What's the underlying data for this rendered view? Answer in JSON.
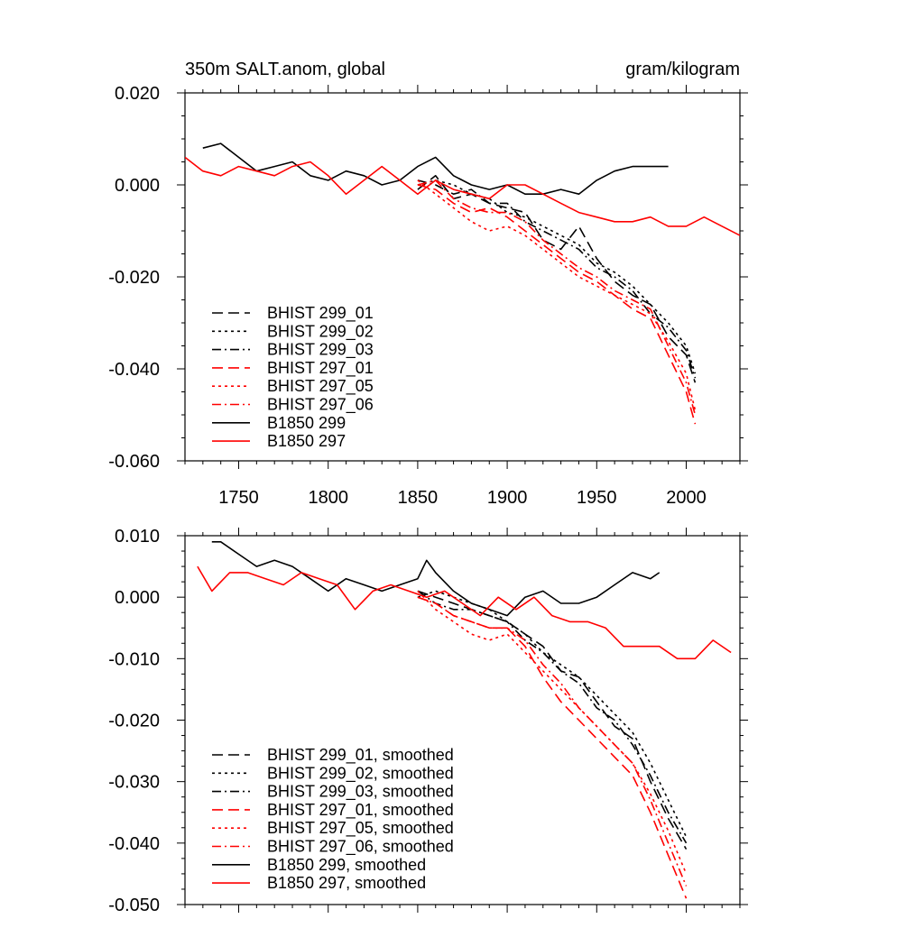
{
  "colors": {
    "black": "#000000",
    "red": "#ff0000"
  },
  "chart_data": [
    {
      "type": "line",
      "title": "350m SALT.anom, global",
      "units": "gram/kilogram",
      "xlabel": "",
      "ylabel": "",
      "xlim": [
        1720,
        2030
      ],
      "ylim": [
        -0.06,
        0.02
      ],
      "xticks": [
        1750,
        1800,
        1850,
        1900,
        1950,
        2000
      ],
      "xtick_labels": [
        "1750",
        "1800",
        "1850",
        "1900",
        "1950",
        "2000"
      ],
      "yticks": [
        0.02,
        0.0,
        -0.02,
        -0.04,
        -0.06
      ],
      "ytick_labels": [
        "0.020",
        "0.000",
        "-0.020",
        "-0.040",
        "-0.060"
      ],
      "legend_position": "lower-left",
      "series": [
        {
          "name": "BHIST 299_01",
          "color": "black",
          "dash": "dash",
          "x": [
            1850,
            1860,
            1870,
            1880,
            1890,
            1900,
            1910,
            1920,
            1930,
            1940,
            1950,
            1960,
            1970,
            1980,
            1990,
            2000,
            2005
          ],
          "y": [
            -0.001,
            0.002,
            -0.003,
            -0.002,
            -0.004,
            -0.005,
            -0.006,
            -0.012,
            -0.014,
            -0.009,
            -0.016,
            -0.021,
            -0.024,
            -0.026,
            -0.033,
            -0.037,
            -0.043
          ]
        },
        {
          "name": "BHIST 299_02",
          "color": "black",
          "dash": "dot",
          "x": [
            1850,
            1860,
            1870,
            1880,
            1890,
            1900,
            1910,
            1920,
            1930,
            1940,
            1950,
            1960,
            1970,
            1980,
            1990,
            2000,
            2005
          ],
          "y": [
            0.0,
            0.001,
            0.0,
            -0.002,
            -0.003,
            -0.006,
            -0.007,
            -0.009,
            -0.011,
            -0.013,
            -0.017,
            -0.019,
            -0.022,
            -0.026,
            -0.03,
            -0.035,
            -0.041
          ]
        },
        {
          "name": "BHIST 299_03",
          "color": "black",
          "dash": "dashdot",
          "x": [
            1850,
            1860,
            1870,
            1880,
            1890,
            1900,
            1910,
            1920,
            1930,
            1940,
            1950,
            1960,
            1970,
            1980,
            1990,
            2000,
            2005
          ],
          "y": [
            0.001,
            0.0,
            -0.002,
            -0.001,
            -0.004,
            -0.004,
            -0.008,
            -0.01,
            -0.012,
            -0.014,
            -0.018,
            -0.02,
            -0.023,
            -0.028,
            -0.031,
            -0.036,
            -0.042
          ]
        },
        {
          "name": "BHIST 297_01",
          "color": "red",
          "dash": "dash",
          "x": [
            1850,
            1860,
            1870,
            1880,
            1890,
            1900,
            1910,
            1920,
            1930,
            1940,
            1950,
            1960,
            1970,
            1980,
            1990,
            2000,
            2005
          ],
          "y": [
            0.0,
            -0.001,
            -0.004,
            -0.006,
            -0.005,
            -0.007,
            -0.01,
            -0.013,
            -0.016,
            -0.019,
            -0.021,
            -0.024,
            -0.027,
            -0.029,
            -0.037,
            -0.045,
            -0.052
          ]
        },
        {
          "name": "BHIST 297_05",
          "color": "red",
          "dash": "dot",
          "x": [
            1850,
            1860,
            1870,
            1880,
            1890,
            1900,
            1910,
            1920,
            1930,
            1940,
            1950,
            1960,
            1970,
            1980,
            1990,
            2000,
            2005
          ],
          "y": [
            0.001,
            -0.002,
            -0.005,
            -0.008,
            -0.01,
            -0.009,
            -0.011,
            -0.014,
            -0.017,
            -0.02,
            -0.022,
            -0.024,
            -0.026,
            -0.028,
            -0.034,
            -0.041,
            -0.049
          ]
        },
        {
          "name": "BHIST 297_06",
          "color": "red",
          "dash": "dashdot",
          "x": [
            1850,
            1860,
            1870,
            1880,
            1890,
            1900,
            1910,
            1920,
            1930,
            1940,
            1950,
            1960,
            1970,
            1980,
            1990,
            2000,
            2005
          ],
          "y": [
            0.0,
            0.001,
            -0.003,
            -0.005,
            -0.006,
            -0.006,
            -0.008,
            -0.012,
            -0.015,
            -0.018,
            -0.02,
            -0.023,
            -0.025,
            -0.027,
            -0.035,
            -0.043,
            -0.05
          ]
        },
        {
          "name": "B1850 299",
          "color": "black",
          "dash": "solid",
          "x": [
            1730,
            1740,
            1750,
            1760,
            1770,
            1780,
            1790,
            1800,
            1810,
            1820,
            1830,
            1840,
            1850,
            1860,
            1870,
            1880,
            1890,
            1900,
            1910,
            1920,
            1930,
            1940,
            1950,
            1960,
            1970,
            1980,
            1990
          ],
          "y": [
            0.008,
            0.009,
            0.006,
            0.003,
            0.004,
            0.005,
            0.002,
            0.001,
            0.003,
            0.002,
            0.0,
            0.001,
            0.004,
            0.006,
            0.002,
            0.0,
            -0.001,
            0.0,
            -0.002,
            -0.002,
            -0.001,
            -0.002,
            0.001,
            0.003,
            0.004,
            0.004,
            0.004
          ]
        },
        {
          "name": "B1850 297",
          "color": "red",
          "dash": "solid",
          "x": [
            1720,
            1730,
            1740,
            1750,
            1760,
            1770,
            1780,
            1790,
            1800,
            1810,
            1820,
            1830,
            1840,
            1850,
            1860,
            1870,
            1880,
            1890,
            1900,
            1910,
            1920,
            1930,
            1940,
            1950,
            1960,
            1970,
            1980,
            1990,
            2000,
            2010,
            2020,
            2030
          ],
          "y": [
            0.006,
            0.003,
            0.002,
            0.004,
            0.003,
            0.002,
            0.004,
            0.005,
            0.002,
            -0.002,
            0.001,
            0.004,
            0.001,
            -0.002,
            0.001,
            -0.001,
            -0.002,
            -0.003,
            0.0,
            0.0,
            -0.002,
            -0.004,
            -0.006,
            -0.007,
            -0.008,
            -0.008,
            -0.007,
            -0.009,
            -0.009,
            -0.007,
            -0.009,
            -0.011
          ]
        }
      ]
    },
    {
      "type": "line",
      "title": "",
      "units": "",
      "xlabel": "",
      "ylabel": "",
      "xlim": [
        1720,
        2030
      ],
      "ylim": [
        -0.05,
        0.01
      ],
      "xticks": [
        1750,
        1800,
        1850,
        1900,
        1950,
        2000
      ],
      "xtick_labels": [],
      "yticks": [
        0.01,
        0.0,
        -0.01,
        -0.02,
        -0.03,
        -0.04,
        -0.05
      ],
      "ytick_labels": [
        "0.010",
        "0.000",
        "-0.010",
        "-0.020",
        "-0.030",
        "-0.040",
        "-0.050"
      ],
      "legend_position": "lower-left",
      "series": [
        {
          "name": "BHIST 299_01, smoothed",
          "color": "black",
          "dash": "dash",
          "x": [
            1850,
            1860,
            1870,
            1880,
            1890,
            1900,
            1910,
            1920,
            1930,
            1940,
            1950,
            1960,
            1970,
            1980,
            1990,
            2000
          ],
          "y": [
            0.001,
            0.0,
            -0.001,
            -0.002,
            -0.003,
            -0.004,
            -0.006,
            -0.008,
            -0.012,
            -0.013,
            -0.017,
            -0.021,
            -0.023,
            -0.03,
            -0.036,
            -0.041
          ]
        },
        {
          "name": "BHIST 299_02, smoothed",
          "color": "black",
          "dash": "dot",
          "x": [
            1850,
            1860,
            1870,
            1880,
            1890,
            1900,
            1910,
            1920,
            1930,
            1940,
            1950,
            1960,
            1970,
            1980,
            1990,
            2000
          ],
          "y": [
            0.0,
            0.001,
            0.0,
            -0.001,
            -0.002,
            -0.004,
            -0.006,
            -0.009,
            -0.011,
            -0.013,
            -0.016,
            -0.019,
            -0.022,
            -0.027,
            -0.033,
            -0.039
          ]
        },
        {
          "name": "BHIST 299_03, smoothed",
          "color": "black",
          "dash": "dashdot",
          "x": [
            1850,
            1860,
            1870,
            1880,
            1890,
            1900,
            1910,
            1920,
            1930,
            1940,
            1950,
            1960,
            1970,
            1980,
            1990,
            2000
          ],
          "y": [
            0.001,
            -0.001,
            -0.002,
            -0.002,
            -0.003,
            -0.004,
            -0.007,
            -0.009,
            -0.012,
            -0.014,
            -0.018,
            -0.02,
            -0.024,
            -0.029,
            -0.035,
            -0.04
          ]
        },
        {
          "name": "BHIST 297_01, smoothed",
          "color": "red",
          "dash": "dash",
          "x": [
            1850,
            1860,
            1870,
            1880,
            1890,
            1900,
            1910,
            1920,
            1930,
            1940,
            1950,
            1960,
            1970,
            1980,
            1990,
            2000
          ],
          "y": [
            0.0,
            -0.001,
            -0.003,
            -0.004,
            -0.005,
            -0.005,
            -0.008,
            -0.013,
            -0.017,
            -0.02,
            -0.023,
            -0.026,
            -0.029,
            -0.035,
            -0.042,
            -0.049
          ]
        },
        {
          "name": "BHIST 297_05, smoothed",
          "color": "red",
          "dash": "dot",
          "x": [
            1850,
            1860,
            1870,
            1880,
            1890,
            1900,
            1910,
            1920,
            1930,
            1940,
            1950,
            1960,
            1970,
            1980,
            1990,
            2000
          ],
          "y": [
            0.001,
            -0.002,
            -0.004,
            -0.006,
            -0.007,
            -0.006,
            -0.009,
            -0.012,
            -0.015,
            -0.018,
            -0.021,
            -0.024,
            -0.027,
            -0.032,
            -0.038,
            -0.045
          ]
        },
        {
          "name": "BHIST 297_06, smoothed",
          "color": "red",
          "dash": "dashdot",
          "x": [
            1850,
            1860,
            1870,
            1880,
            1890,
            1900,
            1910,
            1920,
            1930,
            1940,
            1950,
            1960,
            1970,
            1980,
            1990,
            2000
          ],
          "y": [
            0.0,
            -0.001,
            -0.003,
            -0.004,
            -0.005,
            -0.005,
            -0.007,
            -0.011,
            -0.014,
            -0.018,
            -0.021,
            -0.024,
            -0.027,
            -0.033,
            -0.04,
            -0.047
          ]
        },
        {
          "name": "B1850 299, smoothed",
          "color": "black",
          "dash": "solid",
          "x": [
            1735,
            1740,
            1750,
            1760,
            1770,
            1780,
            1790,
            1800,
            1810,
            1820,
            1830,
            1840,
            1850,
            1855,
            1860,
            1870,
            1880,
            1890,
            1900,
            1910,
            1920,
            1930,
            1940,
            1950,
            1960,
            1970,
            1980,
            1985
          ],
          "y": [
            0.009,
            0.009,
            0.007,
            0.005,
            0.006,
            0.005,
            0.003,
            0.001,
            0.003,
            0.002,
            0.001,
            0.002,
            0.003,
            0.006,
            0.004,
            0.001,
            -0.001,
            -0.002,
            -0.003,
            0.0,
            0.001,
            -0.001,
            -0.001,
            0.0,
            0.002,
            0.004,
            0.003,
            0.004
          ]
        },
        {
          "name": "B1850 297, smoothed",
          "color": "red",
          "dash": "solid",
          "x": [
            1727,
            1735,
            1745,
            1755,
            1765,
            1775,
            1785,
            1795,
            1805,
            1815,
            1825,
            1835,
            1845,
            1855,
            1865,
            1875,
            1885,
            1895,
            1905,
            1915,
            1925,
            1935,
            1945,
            1955,
            1965,
            1975,
            1985,
            1995,
            2005,
            2015,
            2025
          ],
          "y": [
            0.005,
            0.001,
            0.004,
            0.004,
            0.003,
            0.002,
            0.004,
            0.003,
            0.002,
            -0.002,
            0.001,
            0.002,
            0.001,
            0.0,
            0.001,
            -0.001,
            -0.003,
            0.0,
            -0.002,
            0.0,
            -0.003,
            -0.004,
            -0.004,
            -0.005,
            -0.008,
            -0.008,
            -0.008,
            -0.01,
            -0.01,
            -0.007,
            -0.009
          ]
        }
      ]
    }
  ]
}
